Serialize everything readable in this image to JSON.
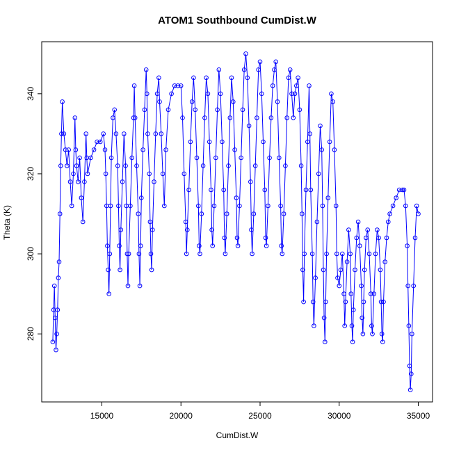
{
  "chart_data": {
    "type": "line",
    "title": "ATOM1 Southbound CumDist.W",
    "xlabel": "CumDist.W",
    "ylabel": "Theta (K)",
    "xlim": [
      11200,
      35900
    ],
    "ylim": [
      263,
      353
    ],
    "x_ticks": [
      15000,
      20000,
      25000,
      30000,
      35000
    ],
    "y_ticks": [
      280,
      300,
      320,
      340
    ],
    "x_tick_labels": [
      "15000",
      "20000",
      "25000",
      "30000",
      "35000"
    ],
    "y_tick_labels": [
      "280",
      "300",
      "320",
      "340"
    ],
    "grid": false,
    "legend": "none",
    "colors": {
      "series": "#0000ff",
      "frame": "#000000"
    },
    "series": [
      {
        "marker": "open-circle",
        "line": "solid",
        "points": [
          [
            11900,
            278
          ],
          [
            11950,
            286
          ],
          [
            12000,
            292
          ],
          [
            12050,
            284
          ],
          [
            12100,
            276
          ],
          [
            12150,
            280
          ],
          [
            12200,
            286
          ],
          [
            12250,
            294
          ],
          [
            12300,
            298
          ],
          [
            12350,
            310
          ],
          [
            12400,
            322
          ],
          [
            12450,
            330
          ],
          [
            12500,
            338
          ],
          [
            12600,
            330
          ],
          [
            12700,
            326
          ],
          [
            12800,
            322
          ],
          [
            12900,
            326
          ],
          [
            13000,
            318
          ],
          [
            13100,
            312
          ],
          [
            13200,
            320
          ],
          [
            13300,
            334
          ],
          [
            13350,
            326
          ],
          [
            13400,
            322
          ],
          [
            13500,
            318
          ],
          [
            13600,
            324
          ],
          [
            13700,
            314
          ],
          [
            13800,
            308
          ],
          [
            13900,
            318
          ],
          [
            14000,
            330
          ],
          [
            14050,
            324
          ],
          [
            14100,
            320
          ],
          [
            14300,
            324
          ],
          [
            14500,
            326
          ],
          [
            14700,
            328
          ],
          [
            14900,
            328
          ],
          [
            15100,
            330
          ],
          [
            15200,
            326
          ],
          [
            15250,
            320
          ],
          [
            15300,
            312
          ],
          [
            15350,
            302
          ],
          [
            15400,
            296
          ],
          [
            15450,
            290
          ],
          [
            15500,
            300
          ],
          [
            15550,
            312
          ],
          [
            15600,
            324
          ],
          [
            15700,
            334
          ],
          [
            15800,
            336
          ],
          [
            15900,
            330
          ],
          [
            16000,
            322
          ],
          [
            16050,
            312
          ],
          [
            16100,
            302
          ],
          [
            16150,
            296
          ],
          [
            16200,
            306
          ],
          [
            16300,
            318
          ],
          [
            16400,
            330
          ],
          [
            16500,
            322
          ],
          [
            16550,
            312
          ],
          [
            16600,
            300
          ],
          [
            16650,
            292
          ],
          [
            16700,
            300
          ],
          [
            16800,
            312
          ],
          [
            16900,
            324
          ],
          [
            17000,
            334
          ],
          [
            17050,
            342
          ],
          [
            17100,
            334
          ],
          [
            17200,
            322
          ],
          [
            17300,
            310
          ],
          [
            17350,
            300
          ],
          [
            17400,
            292
          ],
          [
            17450,
            302
          ],
          [
            17500,
            314
          ],
          [
            17600,
            326
          ],
          [
            17700,
            336
          ],
          [
            17800,
            346
          ],
          [
            17850,
            340
          ],
          [
            17900,
            330
          ],
          [
            18000,
            320
          ],
          [
            18050,
            308
          ],
          [
            18100,
            300
          ],
          [
            18150,
            296
          ],
          [
            18200,
            306
          ],
          [
            18300,
            318
          ],
          [
            18400,
            330
          ],
          [
            18500,
            340
          ],
          [
            18600,
            344
          ],
          [
            18650,
            338
          ],
          [
            18750,
            330
          ],
          [
            18850,
            320
          ],
          [
            18950,
            312
          ],
          [
            19050,
            326
          ],
          [
            19200,
            336
          ],
          [
            19400,
            340
          ],
          [
            19600,
            342
          ],
          [
            19800,
            342
          ],
          [
            20000,
            342
          ],
          [
            20100,
            334
          ],
          [
            20200,
            320
          ],
          [
            20300,
            308
          ],
          [
            20350,
            300
          ],
          [
            20400,
            306
          ],
          [
            20500,
            316
          ],
          [
            20600,
            328
          ],
          [
            20700,
            338
          ],
          [
            20800,
            344
          ],
          [
            20900,
            336
          ],
          [
            21000,
            324
          ],
          [
            21100,
            312
          ],
          [
            21150,
            302
          ],
          [
            21200,
            300
          ],
          [
            21300,
            310
          ],
          [
            21400,
            322
          ],
          [
            21500,
            334
          ],
          [
            21600,
            344
          ],
          [
            21700,
            340
          ],
          [
            21800,
            328
          ],
          [
            21900,
            316
          ],
          [
            21950,
            306
          ],
          [
            22000,
            302
          ],
          [
            22100,
            312
          ],
          [
            22200,
            324
          ],
          [
            22300,
            336
          ],
          [
            22400,
            346
          ],
          [
            22500,
            340
          ],
          [
            22600,
            328
          ],
          [
            22700,
            316
          ],
          [
            22750,
            304
          ],
          [
            22800,
            300
          ],
          [
            22900,
            310
          ],
          [
            23000,
            322
          ],
          [
            23100,
            334
          ],
          [
            23200,
            344
          ],
          [
            23300,
            338
          ],
          [
            23400,
            326
          ],
          [
            23500,
            314
          ],
          [
            23550,
            304
          ],
          [
            23600,
            302
          ],
          [
            23700,
            312
          ],
          [
            23800,
            324
          ],
          [
            23900,
            336
          ],
          [
            24000,
            346
          ],
          [
            24100,
            350
          ],
          [
            24200,
            344
          ],
          [
            24300,
            332
          ],
          [
            24400,
            318
          ],
          [
            24450,
            306
          ],
          [
            24500,
            300
          ],
          [
            24600,
            310
          ],
          [
            24700,
            322
          ],
          [
            24800,
            334
          ],
          [
            24900,
            346
          ],
          [
            25000,
            348
          ],
          [
            25100,
            340
          ],
          [
            25200,
            328
          ],
          [
            25300,
            316
          ],
          [
            25350,
            304
          ],
          [
            25400,
            302
          ],
          [
            25500,
            312
          ],
          [
            25600,
            324
          ],
          [
            25700,
            334
          ],
          [
            25800,
            342
          ],
          [
            25900,
            346
          ],
          [
            26000,
            348
          ],
          [
            26100,
            338
          ],
          [
            26200,
            324
          ],
          [
            26300,
            312
          ],
          [
            26350,
            302
          ],
          [
            26400,
            300
          ],
          [
            26500,
            310
          ],
          [
            26600,
            322
          ],
          [
            26700,
            334
          ],
          [
            26800,
            344
          ],
          [
            26900,
            346
          ],
          [
            27000,
            340
          ],
          [
            27100,
            334
          ],
          [
            27200,
            340
          ],
          [
            27300,
            342
          ],
          [
            27400,
            344
          ],
          [
            27500,
            336
          ],
          [
            27600,
            322
          ],
          [
            27650,
            310
          ],
          [
            27700,
            296
          ],
          [
            27750,
            288
          ],
          [
            27800,
            300
          ],
          [
            27900,
            316
          ],
          [
            28000,
            328
          ],
          [
            28100,
            342
          ],
          [
            28150,
            330
          ],
          [
            28200,
            316
          ],
          [
            28300,
            300
          ],
          [
            28350,
            288
          ],
          [
            28400,
            282
          ],
          [
            28500,
            294
          ],
          [
            28600,
            308
          ],
          [
            28700,
            320
          ],
          [
            28800,
            332
          ],
          [
            28900,
            326
          ],
          [
            28950,
            312
          ],
          [
            29000,
            296
          ],
          [
            29050,
            284
          ],
          [
            29100,
            278
          ],
          [
            29150,
            288
          ],
          [
            29200,
            300
          ],
          [
            29300,
            314
          ],
          [
            29400,
            328
          ],
          [
            29500,
            340
          ],
          [
            29600,
            338
          ],
          [
            29700,
            326
          ],
          [
            29800,
            312
          ],
          [
            29850,
            300
          ],
          [
            29900,
            294
          ],
          [
            30000,
            292
          ],
          [
            30100,
            296
          ],
          [
            30200,
            300
          ],
          [
            30300,
            290
          ],
          [
            30350,
            282
          ],
          [
            30400,
            288
          ],
          [
            30500,
            298
          ],
          [
            30600,
            306
          ],
          [
            30700,
            300
          ],
          [
            30750,
            290
          ],
          [
            30800,
            282
          ],
          [
            30850,
            278
          ],
          [
            30900,
            286
          ],
          [
            31000,
            296
          ],
          [
            31100,
            304
          ],
          [
            31200,
            308
          ],
          [
            31300,
            302
          ],
          [
            31400,
            292
          ],
          [
            31450,
            284
          ],
          [
            31500,
            280
          ],
          [
            31550,
            288
          ],
          [
            31600,
            296
          ],
          [
            31700,
            304
          ],
          [
            31800,
            306
          ],
          [
            31900,
            300
          ],
          [
            32000,
            290
          ],
          [
            32050,
            282
          ],
          [
            32100,
            280
          ],
          [
            32200,
            290
          ],
          [
            32300,
            300
          ],
          [
            32400,
            306
          ],
          [
            32500,
            304
          ],
          [
            32600,
            296
          ],
          [
            32650,
            288
          ],
          [
            32700,
            280
          ],
          [
            32750,
            278
          ],
          [
            32800,
            288
          ],
          [
            32900,
            298
          ],
          [
            33000,
            304
          ],
          [
            33100,
            308
          ],
          [
            33200,
            310
          ],
          [
            33400,
            312
          ],
          [
            33600,
            314
          ],
          [
            33800,
            316
          ],
          [
            34000,
            316
          ],
          [
            34100,
            316
          ],
          [
            34200,
            312
          ],
          [
            34300,
            302
          ],
          [
            34350,
            292
          ],
          [
            34400,
            282
          ],
          [
            34450,
            272
          ],
          [
            34500,
            266
          ],
          [
            34550,
            270
          ],
          [
            34600,
            280
          ],
          [
            34700,
            292
          ],
          [
            34800,
            304
          ],
          [
            34900,
            312
          ],
          [
            35000,
            310
          ]
        ]
      }
    ]
  }
}
